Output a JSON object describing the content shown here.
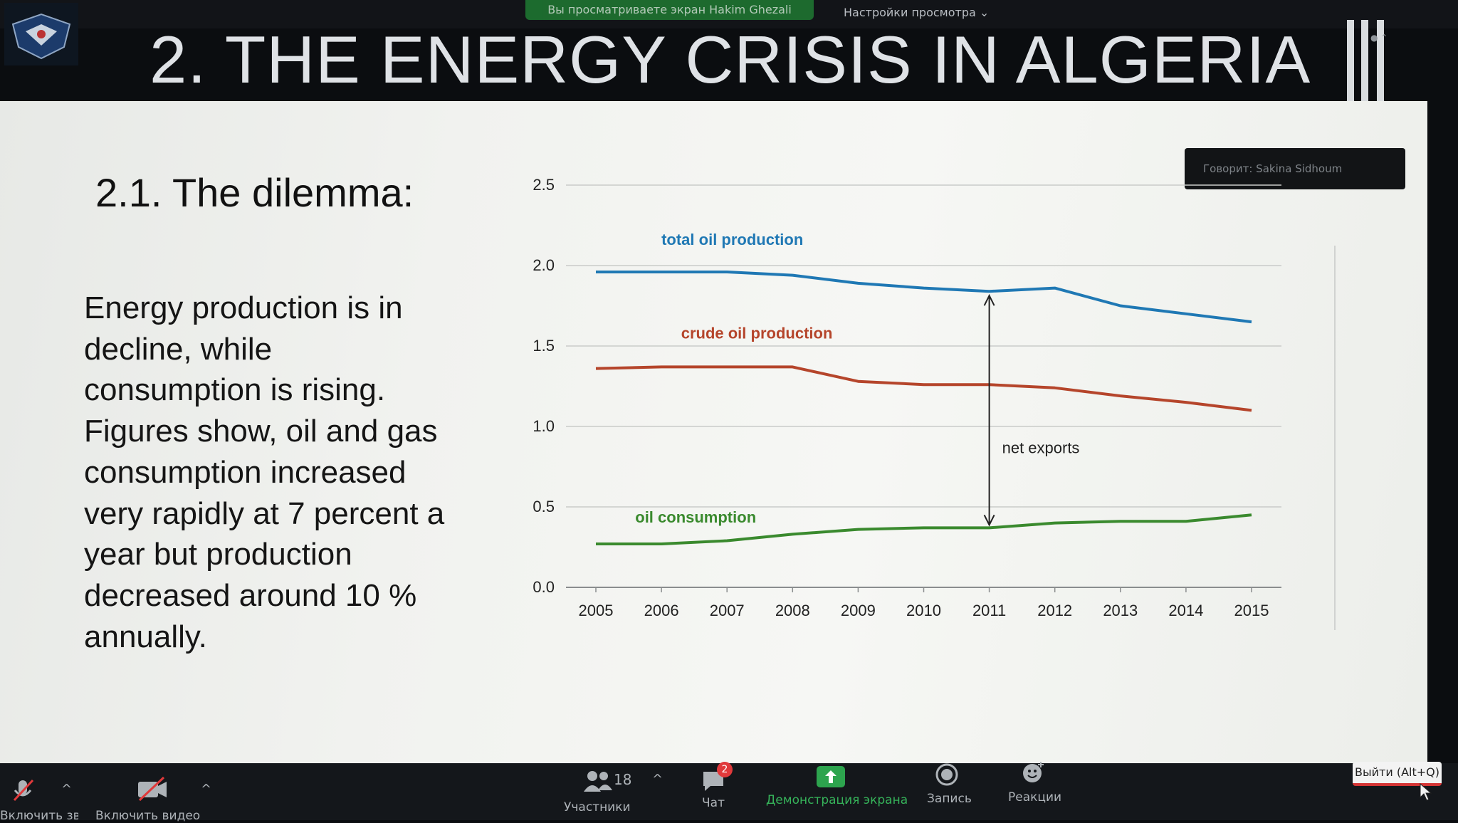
{
  "meeting": {
    "share_banner": "Вы просматриваете экран Hakim Ghezali",
    "view_settings": "Настройки просмотра",
    "view_settings_caret": "⌄",
    "speaker_tag": "Говорит: Sakina Sidhoum",
    "record_indicator": "● ⌃"
  },
  "slide": {
    "title": "2. THE ENERGY CRISIS IN ALGERIA",
    "subtitle": "2.1. The dilemma:",
    "paragraph_lines": [
      "Energy production is in",
      "decline, while",
      "consumption is rising.",
      "Figures show, oil and gas",
      "consumption increased",
      "very rapidly at 7 percent a",
      "year but production",
      "decreased around 10 %",
      "annually."
    ]
  },
  "chart_data": {
    "type": "line",
    "x": [
      2005,
      2006,
      2007,
      2008,
      2009,
      2010,
      2011,
      2012,
      2013,
      2014,
      2015
    ],
    "x_tick_labels": [
      "2005",
      "2006",
      "2007",
      "2008",
      "2009",
      "2010",
      "2011",
      "2012",
      "2013",
      "2014",
      "2015"
    ],
    "y_tick_labels": [
      "0.0",
      "0.5",
      "1.0",
      "1.5",
      "2.0",
      "2.5"
    ],
    "ylim": [
      0,
      2.5
    ],
    "grid": true,
    "series": [
      {
        "name": "total oil production",
        "color": "#1f78b4",
        "values": [
          1.96,
          1.96,
          1.96,
          1.94,
          1.89,
          1.86,
          1.84,
          1.86,
          1.75,
          1.7,
          1.65
        ]
      },
      {
        "name": "crude oil production",
        "color": "#b5452b",
        "values": [
          1.36,
          1.37,
          1.37,
          1.37,
          1.28,
          1.26,
          1.26,
          1.24,
          1.19,
          1.15,
          1.1
        ]
      },
      {
        "name": "oil consumption",
        "color": "#3a8a2e",
        "values": [
          0.27,
          0.27,
          0.29,
          0.33,
          0.36,
          0.37,
          0.37,
          0.4,
          0.41,
          0.41,
          0.45
        ]
      }
    ],
    "annotations": [
      {
        "text": "net exports",
        "x": 2011,
        "from_y": 0.37,
        "to_y": 1.84
      }
    ]
  },
  "toolbar": {
    "mic_label": "Включить звук",
    "video_label": "Включить видео",
    "participants_label": "Участники",
    "participants_count": "18",
    "chat_label": "Чат",
    "chat_badge": "2",
    "share_label": "Демонстрация экрана",
    "record_label": "Запись",
    "reactions_label": "Реакции",
    "leave_label": "Выйти (Alt+Q)",
    "caret": "^"
  },
  "colors": {
    "share_green": "#1f7a33",
    "leave_red": "#d43535"
  }
}
